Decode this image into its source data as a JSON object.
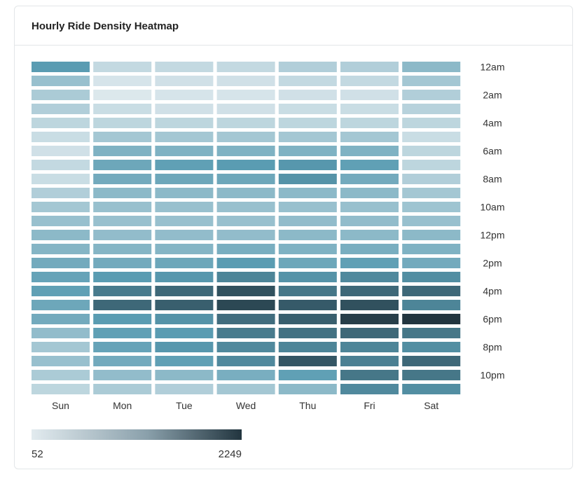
{
  "title": "Hourly Ride Density Heatmap",
  "chart_data": {
    "type": "heatmap",
    "title": "Hourly Ride Density Heatmap",
    "x_categories": [
      "Sun",
      "Mon",
      "Tue",
      "Wed",
      "Thu",
      "Fri",
      "Sat"
    ],
    "y_categories": [
      "12am",
      "1am",
      "2am",
      "3am",
      "4am",
      "5am",
      "6am",
      "7am",
      "8am",
      "9am",
      "10am",
      "11am",
      "12pm",
      "1pm",
      "2pm",
      "3pm",
      "4pm",
      "5pm",
      "6pm",
      "7pm",
      "8pm",
      "9pm",
      "10pm",
      "11pm"
    ],
    "y_tick_labels": [
      "12am",
      "2am",
      "4am",
      "6am",
      "8am",
      "10am",
      "12pm",
      "2pm",
      "4pm",
      "6pm",
      "8pm",
      "10pm"
    ],
    "values": [
      [
        1150,
        300,
        300,
        300,
        450,
        450,
        750
      ],
      [
        650,
        150,
        200,
        200,
        300,
        300,
        550
      ],
      [
        500,
        100,
        150,
        150,
        200,
        200,
        450
      ],
      [
        450,
        250,
        200,
        200,
        250,
        250,
        400
      ],
      [
        350,
        350,
        350,
        350,
        350,
        350,
        350
      ],
      [
        250,
        550,
        550,
        550,
        550,
        550,
        250
      ],
      [
        200,
        850,
        850,
        850,
        850,
        850,
        350
      ],
      [
        300,
        1000,
        1100,
        1150,
        1200,
        1100,
        350
      ],
      [
        250,
        950,
        1000,
        1000,
        1250,
        950,
        450
      ],
      [
        450,
        750,
        750,
        750,
        750,
        750,
        550
      ],
      [
        550,
        650,
        650,
        650,
        650,
        650,
        600
      ],
      [
        650,
        650,
        650,
        650,
        700,
        700,
        650
      ],
      [
        750,
        700,
        700,
        700,
        750,
        750,
        750
      ],
      [
        800,
        800,
        800,
        900,
        850,
        900,
        850
      ],
      [
        950,
        950,
        1000,
        1150,
        1000,
        1100,
        950
      ],
      [
        1050,
        1150,
        1200,
        1400,
        1250,
        1350,
        1300
      ],
      [
        1100,
        1500,
        1700,
        1950,
        1550,
        1700,
        1700
      ],
      [
        1000,
        1700,
        1800,
        2050,
        1850,
        1950,
        1400
      ],
      [
        950,
        1150,
        1250,
        1650,
        1800,
        2150,
        2249
      ],
      [
        700,
        1100,
        1150,
        1500,
        1600,
        1700,
        1550
      ],
      [
        550,
        1050,
        1200,
        1350,
        1400,
        1400,
        1300
      ],
      [
        650,
        950,
        1100,
        1350,
        1900,
        1450,
        1700
      ],
      [
        500,
        700,
        750,
        900,
        1100,
        1550,
        1550
      ],
      [
        350,
        500,
        450,
        550,
        750,
        1350,
        1300
      ]
    ],
    "scale": {
      "min": 52,
      "max": 2249,
      "color_low": "#e2ebef",
      "color_mid": "#5a9cb2",
      "color_high": "#22353f"
    },
    "legend": {
      "min_label": "52",
      "max_label": "2249",
      "placement": "bottom-left"
    },
    "grid": false
  }
}
